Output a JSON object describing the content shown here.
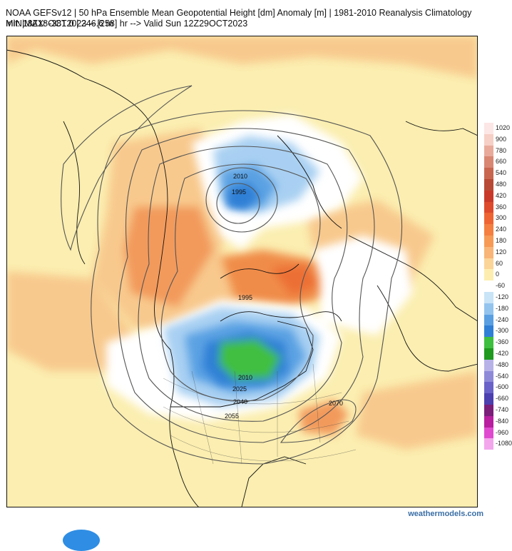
{
  "header": {
    "line1": "NOAA GEFSv12 | 50 hPa Ensemble Mean Geopotential Height [dm] Anomaly [m] | 1981-2010 Reanalysis Climatology",
    "line2_left": "Init: 18Z18OCT2023 -- [258] hr --> Valid Sun 12Z29OCT2023",
    "line2_right": "MIN|MAX: -381.0 | 246.6 m"
  },
  "contour_labels": [
    "2010",
    "1995",
    "1995",
    "2010",
    "2025",
    "2040",
    "2055",
    "2070"
  ],
  "colorbar": [
    {
      "label": "1020",
      "color": "#fde6e6"
    },
    {
      "label": "900",
      "color": "#f6cfc6"
    },
    {
      "label": "780",
      "color": "#e9aa9c"
    },
    {
      "label": "660",
      "color": "#d98673"
    },
    {
      "label": "540",
      "color": "#c96650"
    },
    {
      "label": "480",
      "color": "#b84a35"
    },
    {
      "label": "420",
      "color": "#c9392a"
    },
    {
      "label": "360",
      "color": "#de4a2c"
    },
    {
      "label": "300",
      "color": "#ee6432"
    },
    {
      "label": "240",
      "color": "#f47f40"
    },
    {
      "label": "180",
      "color": "#f69a56"
    },
    {
      "label": "120",
      "color": "#f8b577"
    },
    {
      "label": "60",
      "color": "#fbd498"
    },
    {
      "label": "0",
      "color": "#fdeeb0"
    },
    {
      "label": "-60",
      "color": "#ffffff"
    },
    {
      "label": "-120",
      "color": "#c9e3f7"
    },
    {
      "label": "-180",
      "color": "#93c4ee"
    },
    {
      "label": "-240",
      "color": "#5a9fe2"
    },
    {
      "label": "-300",
      "color": "#2f7fd6"
    },
    {
      "label": "-360",
      "color": "#3fbf3f"
    },
    {
      "label": "-420",
      "color": "#1f9a1f"
    },
    {
      "label": "-480",
      "color": "#b7b3e8"
    },
    {
      "label": "-540",
      "color": "#8f8ad8"
    },
    {
      "label": "-600",
      "color": "#6a62c8"
    },
    {
      "label": "-660",
      "color": "#4c3fb0"
    },
    {
      "label": "-740",
      "color": "#7a1e7a"
    },
    {
      "label": "-840",
      "color": "#b81e9f"
    },
    {
      "label": "-960",
      "color": "#e04ad0"
    },
    {
      "label": "-1080",
      "color": "#f3a6ec"
    }
  ],
  "credit": "weathermodels.com"
}
